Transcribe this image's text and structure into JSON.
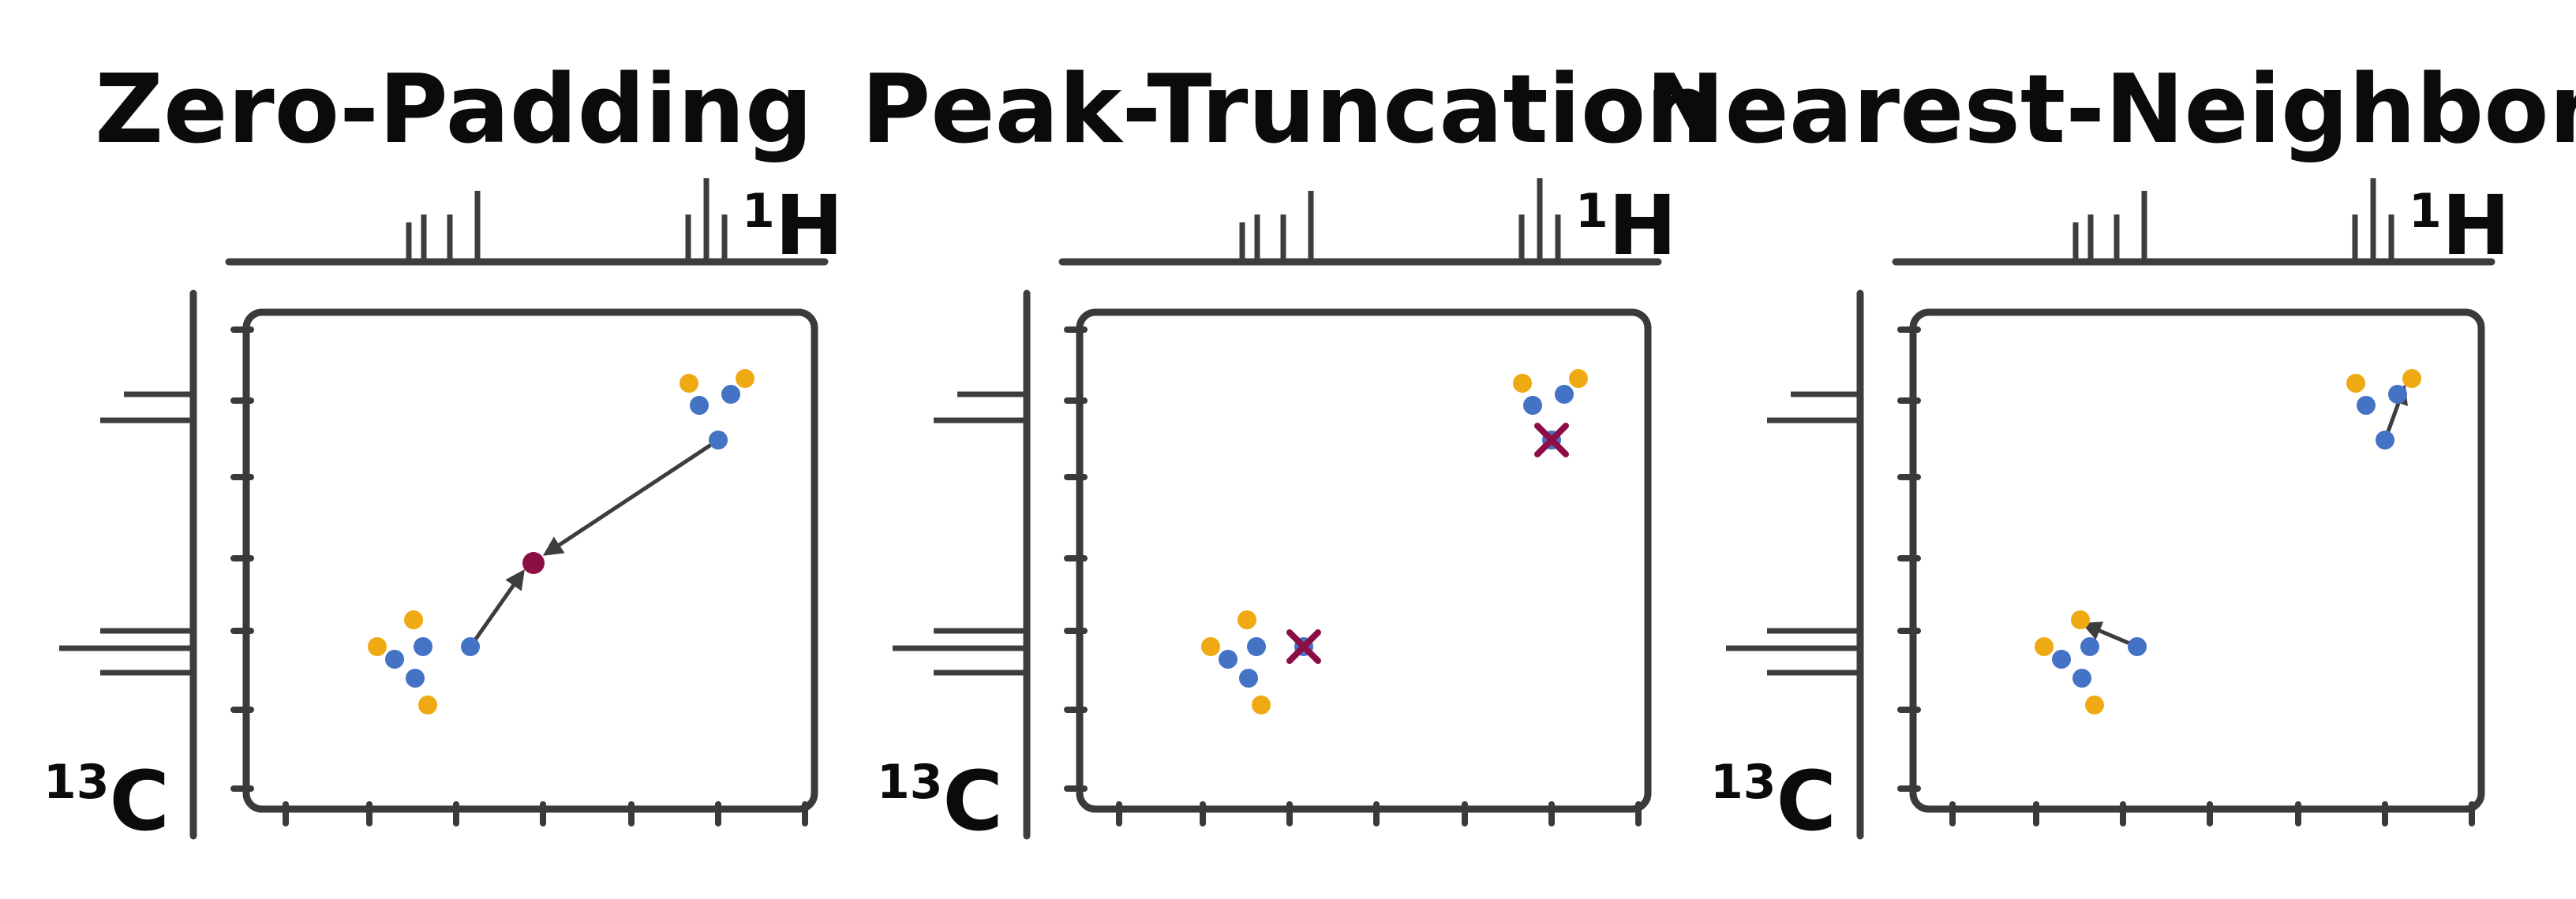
{
  "colors": {
    "line": "#3d3d3d",
    "frame": "#3a3a3a",
    "orange": "#efa913",
    "blue": "#4472c4",
    "marker": "#8b0f45"
  },
  "nuclei": {
    "x_sup": "1",
    "x_main": "H",
    "y_sup": "13",
    "y_main": "C"
  },
  "panels": [
    {
      "title": "Zero-Padding",
      "mode": "zero-padding"
    },
    {
      "title": "Peak-Truncation",
      "mode": "peak-truncation"
    },
    {
      "title": "Nearest-Neighbor",
      "mode": "nearest-neighbor"
    }
  ]
}
